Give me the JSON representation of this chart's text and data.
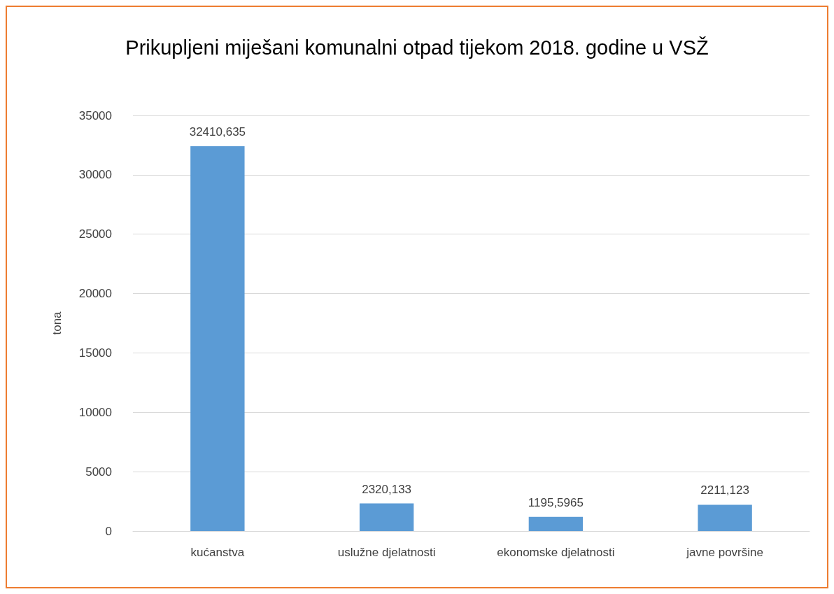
{
  "chart_data": {
    "type": "bar",
    "title": "Prikupljeni miješani komunalni otpad tijekom 2018. godine u VSŽ",
    "ylabel": "tona",
    "categories": [
      "kućanstva",
      "uslužne djelatnosti",
      "ekonomske djelatnosti",
      "javne površine"
    ],
    "values": [
      32410.635,
      2320.133,
      1195.5965,
      2211.123
    ],
    "value_labels": [
      "32410,635",
      "2320,133",
      "1195,5965",
      "2211,123"
    ],
    "color": "#5b9bd5",
    "ylim": [
      0,
      35000
    ],
    "yticks": [
      0,
      5000,
      10000,
      15000,
      20000,
      25000,
      30000,
      35000
    ],
    "grid": "y"
  }
}
